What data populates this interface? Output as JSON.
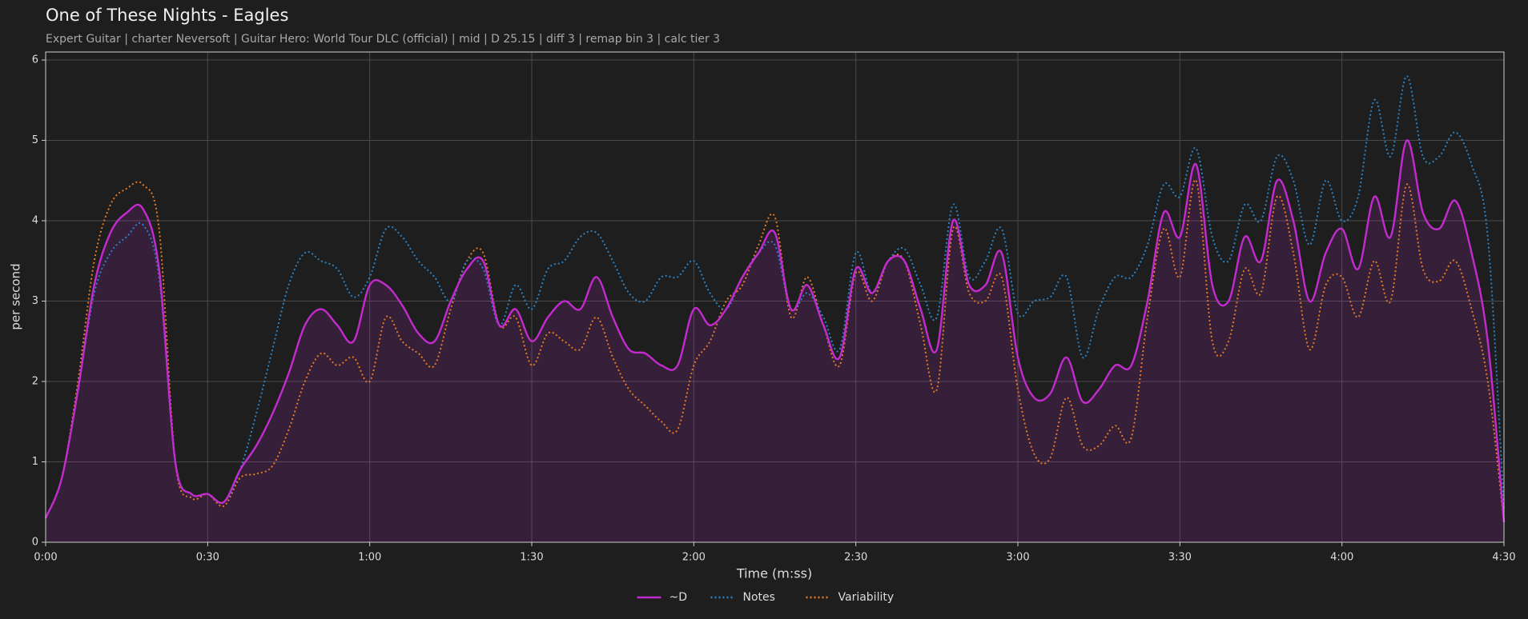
{
  "chart_data": {
    "type": "line",
    "title": "One of These Nights - Eagles",
    "subtitle": "Expert Guitar  |  charter Neversoft  |  Guitar Hero: World Tour DLC (official)  |  mid  |  D 25.15  |  diff 3  |  remap bin 3  |  calc tier 3",
    "xlabel": "Time (m:ss)",
    "ylabel": "per second",
    "x": [
      0,
      3,
      6,
      9,
      12,
      15,
      18,
      21,
      24,
      27,
      30,
      33,
      36,
      39,
      42,
      45,
      48,
      51,
      54,
      57,
      60,
      63,
      66,
      69,
      72,
      75,
      78,
      81,
      84,
      87,
      90,
      93,
      96,
      99,
      102,
      105,
      108,
      111,
      114,
      117,
      120,
      123,
      126,
      129,
      132,
      135,
      138,
      141,
      144,
      147,
      150,
      153,
      156,
      159,
      162,
      165,
      168,
      171,
      174,
      177,
      180,
      183,
      186,
      189,
      192,
      195,
      198,
      201,
      204,
      207,
      210,
      213,
      216,
      219,
      222,
      225,
      228,
      231,
      234,
      237,
      240,
      243,
      246,
      249,
      252,
      255,
      258,
      261,
      264,
      267,
      270
    ],
    "series": [
      {
        "name": "~D",
        "color": "#c42bcf",
        "style": "solid",
        "area": true,
        "values": [
          0.3,
          0.8,
          1.9,
          3.2,
          3.85,
          4.1,
          4.15,
          3.4,
          1.0,
          0.6,
          0.6,
          0.5,
          0.9,
          1.2,
          1.6,
          2.1,
          2.7,
          2.9,
          2.7,
          2.5,
          3.2,
          3.2,
          2.95,
          2.6,
          2.5,
          3.0,
          3.4,
          3.5,
          2.7,
          2.9,
          2.5,
          2.8,
          3.0,
          2.9,
          3.3,
          2.8,
          2.4,
          2.35,
          2.2,
          2.2,
          2.9,
          2.7,
          2.9,
          3.3,
          3.6,
          3.85,
          2.9,
          3.2,
          2.7,
          2.3,
          3.4,
          3.1,
          3.5,
          3.5,
          2.9,
          2.4,
          4.0,
          3.2,
          3.2,
          3.6,
          2.3,
          1.8,
          1.85,
          2.3,
          1.75,
          1.9,
          2.2,
          2.2,
          3.0,
          4.1,
          3.8,
          4.7,
          3.2,
          3.0,
          3.8,
          3.5,
          4.5,
          4.0,
          3.0,
          3.6,
          3.9,
          3.4,
          4.3,
          3.8,
          5.0,
          4.1,
          3.9,
          4.25,
          3.6,
          2.5,
          0.25
        ]
      },
      {
        "name": "Notes",
        "color": "#2b83c6",
        "style": "dotted",
        "values": [
          0.3,
          0.8,
          1.9,
          3.1,
          3.6,
          3.8,
          3.95,
          3.3,
          1.0,
          0.6,
          0.6,
          0.5,
          0.9,
          1.6,
          2.4,
          3.2,
          3.6,
          3.5,
          3.4,
          3.05,
          3.3,
          3.9,
          3.8,
          3.5,
          3.3,
          3.0,
          3.5,
          3.4,
          2.7,
          3.2,
          2.9,
          3.4,
          3.5,
          3.8,
          3.85,
          3.5,
          3.1,
          3.0,
          3.3,
          3.3,
          3.5,
          3.1,
          2.9,
          3.3,
          3.6,
          3.7,
          2.9,
          3.1,
          2.8,
          2.4,
          3.6,
          3.1,
          3.5,
          3.65,
          3.2,
          2.8,
          4.2,
          3.3,
          3.5,
          3.9,
          2.85,
          3.0,
          3.05,
          3.3,
          2.3,
          2.9,
          3.3,
          3.3,
          3.7,
          4.45,
          4.3,
          4.9,
          3.8,
          3.5,
          4.2,
          4.0,
          4.8,
          4.5,
          3.7,
          4.5,
          4.0,
          4.3,
          5.5,
          4.8,
          5.8,
          4.8,
          4.8,
          5.1,
          4.7,
          3.8,
          0.4
        ]
      },
      {
        "name": "Variability",
        "color": "#e57a26",
        "style": "dotted",
        "values": [
          0.3,
          0.8,
          2.0,
          3.5,
          4.2,
          4.4,
          4.45,
          3.9,
          1.0,
          0.55,
          0.6,
          0.45,
          0.8,
          0.85,
          0.95,
          1.4,
          2.0,
          2.35,
          2.2,
          2.3,
          2.0,
          2.8,
          2.5,
          2.35,
          2.2,
          2.9,
          3.5,
          3.6,
          2.7,
          2.8,
          2.2,
          2.6,
          2.5,
          2.4,
          2.8,
          2.3,
          1.9,
          1.7,
          1.5,
          1.4,
          2.2,
          2.5,
          3.0,
          3.2,
          3.7,
          4.05,
          2.8,
          3.3,
          2.7,
          2.2,
          3.35,
          3.0,
          3.5,
          3.5,
          2.7,
          1.9,
          3.9,
          3.1,
          3.0,
          3.3,
          1.9,
          1.1,
          1.05,
          1.8,
          1.2,
          1.2,
          1.45,
          1.3,
          2.8,
          3.9,
          3.3,
          4.5,
          2.5,
          2.5,
          3.4,
          3.1,
          4.3,
          3.6,
          2.4,
          3.2,
          3.3,
          2.8,
          3.5,
          3.0,
          4.45,
          3.4,
          3.25,
          3.5,
          2.9,
          2.0,
          0.25
        ]
      }
    ],
    "xlim": [
      0,
      270
    ],
    "ylim": [
      0,
      6.1
    ],
    "xticks": [
      {
        "value": 0,
        "label": "0:00"
      },
      {
        "value": 30,
        "label": "0:30"
      },
      {
        "value": 60,
        "label": "1:00"
      },
      {
        "value": 90,
        "label": "1:30"
      },
      {
        "value": 120,
        "label": "2:00"
      },
      {
        "value": 150,
        "label": "2:30"
      },
      {
        "value": 180,
        "label": "3:00"
      },
      {
        "value": 210,
        "label": "3:30"
      },
      {
        "value": 240,
        "label": "4:00"
      },
      {
        "value": 270,
        "label": "4:30"
      }
    ],
    "yticks": [
      0,
      1,
      2,
      3,
      4,
      5,
      6
    ],
    "grid": true,
    "legend": "bottom"
  }
}
